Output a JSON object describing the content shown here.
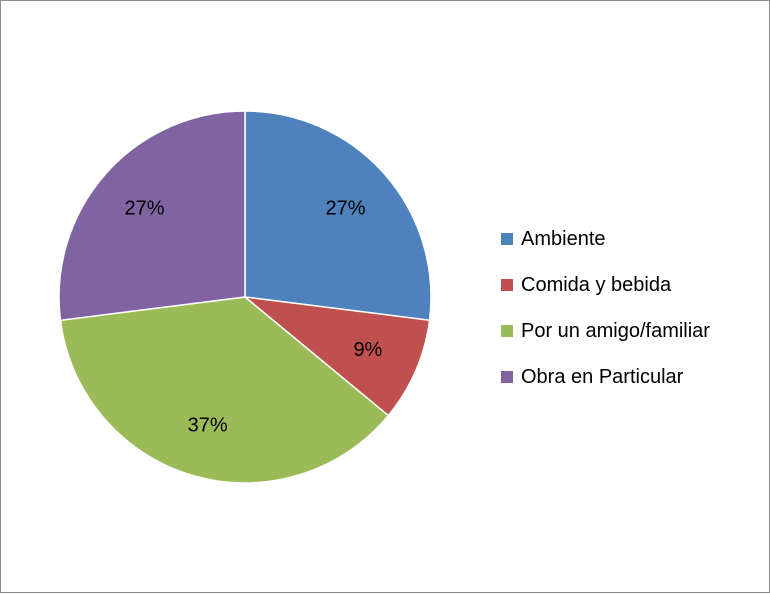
{
  "chart_data": {
    "type": "pie",
    "title": "",
    "categories": [
      "Ambiente",
      "Comida y bebida",
      "Por un amigo/familiar",
      "Obra en Particular"
    ],
    "values": [
      27,
      9,
      37,
      27
    ],
    "value_labels": [
      "27%",
      "9%",
      "37%",
      "27%"
    ],
    "colors": [
      "#4F81BD",
      "#C0504D",
      "#9BBB59",
      "#8064A2"
    ],
    "start_angle": "12 o'clock",
    "direction": "clockwise",
    "legend_position": "right",
    "legend": [
      {
        "label": "Ambiente",
        "color": "#4F81BD"
      },
      {
        "label": "Comida y bebida",
        "color": "#C0504D"
      },
      {
        "label": "Por un amigo/familiar",
        "color": "#9BBB59"
      },
      {
        "label": "Obra en Particular",
        "color": "#8064A2"
      }
    ]
  }
}
